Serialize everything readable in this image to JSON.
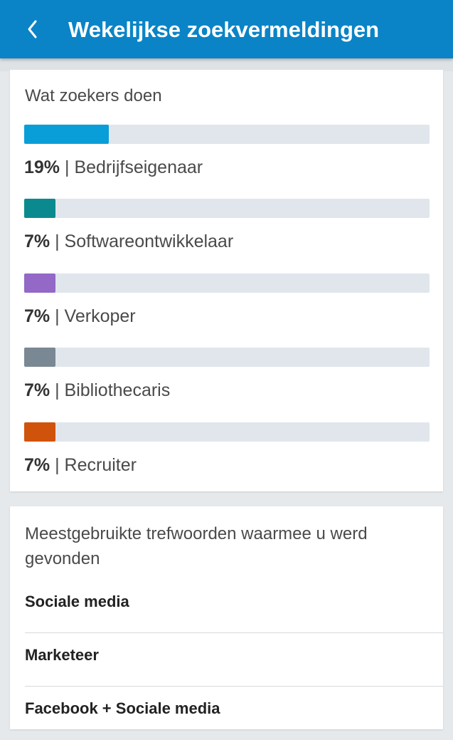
{
  "header": {
    "title": "Wekelijkse zoekvermeldingen",
    "back_icon": "chevron-left-icon",
    "color": "#0a84c6"
  },
  "searchers": {
    "title": "Wat zoekers doen",
    "roles": [
      {
        "percent": "19%",
        "percent_value": 19,
        "separator": "|",
        "name": "Bedrijfseigenaar",
        "color": "#0a9ed9"
      },
      {
        "percent": "7%",
        "percent_value": 7,
        "separator": "|",
        "name": "Softwareontwikkelaar",
        "color": "#0a8a8e"
      },
      {
        "percent": "7%",
        "percent_value": 7,
        "separator": "|",
        "name": "Verkoper",
        "color": "#9368c6"
      },
      {
        "percent": "7%",
        "percent_value": 7,
        "separator": "|",
        "name": "Bibliothecaris",
        "color": "#7a8894"
      },
      {
        "percent": "7%",
        "percent_value": 7,
        "separator": "|",
        "name": "Recruiter",
        "color": "#d0530b"
      }
    ]
  },
  "keywords": {
    "title": "Meestgebruikte trefwoorden waarmee u werd gevonden",
    "items": [
      "Sociale media",
      "Marketeer",
      "Facebook + Sociale media"
    ]
  }
}
